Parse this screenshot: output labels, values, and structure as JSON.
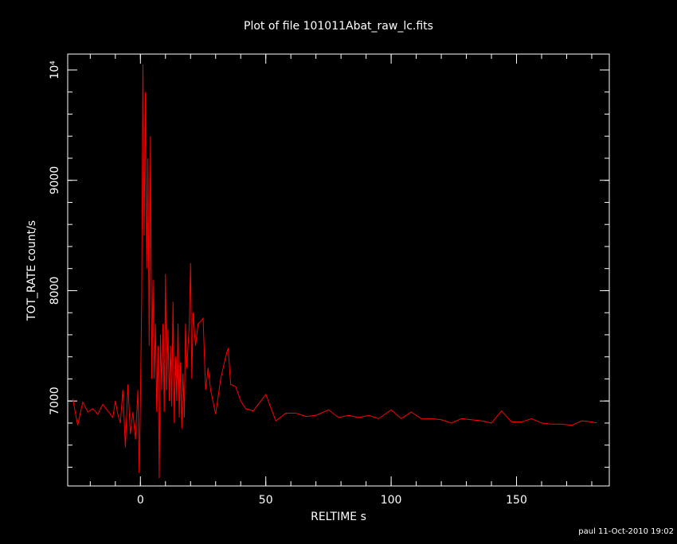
{
  "chart_data": {
    "type": "line",
    "title": "Plot of file 101011Abat_raw_lc.fits",
    "x_label": "RELTIME  s",
    "y_label": "TOT_RATE  count/s",
    "footer": "paul 11-Oct-2010 19:02",
    "xlim": [
      -29,
      187
    ],
    "ylim": [
      6230,
      10144
    ],
    "xticks": [
      0,
      50,
      100,
      150
    ],
    "yticks": [
      7000,
      8000,
      9000,
      {
        "value": 10000,
        "label": "10⁴"
      }
    ],
    "series": [
      {
        "color": "#ff0000",
        "x": [
          -27,
          -25,
          -23,
          -21,
          -19,
          -17,
          -15,
          -13,
          -11,
          -10,
          -9,
          -8,
          -7,
          -6,
          -5,
          -4,
          -3,
          -2,
          -1,
          -0.5,
          0,
          0.5,
          1,
          1.5,
          2,
          2.5,
          3,
          3.5,
          4,
          4.5,
          5,
          5.5,
          6,
          6.5,
          7,
          7.5,
          8,
          8.5,
          9,
          9.5,
          10,
          10.5,
          11,
          11.5,
          12,
          12.5,
          13,
          13.5,
          14,
          14.5,
          15,
          15.5,
          16,
          16.5,
          17,
          17.5,
          18,
          18.5,
          19,
          19.5,
          20,
          20.5,
          21,
          22,
          23,
          24,
          25,
          26,
          27,
          28,
          30,
          32,
          34,
          35,
          36,
          38,
          40,
          42,
          45,
          48,
          50,
          54,
          58,
          62,
          66,
          70,
          75,
          79,
          83,
          87,
          91,
          95,
          100,
          104,
          108,
          112,
          116,
          120,
          124,
          128,
          132,
          136,
          140,
          144,
          148,
          152,
          156,
          160,
          164,
          168,
          172,
          176,
          180,
          182
        ],
        "values": [
          7020,
          6780,
          6990,
          6900,
          6930,
          6880,
          6970,
          6910,
          6850,
          7000,
          6880,
          6800,
          7100,
          6580,
          7150,
          6700,
          6900,
          6650,
          7100,
          6350,
          7000,
          7900,
          10050,
          8500,
          9800,
          8200,
          9200,
          7500,
          9400,
          7200,
          8100,
          7200,
          7700,
          6900,
          7500,
          6300,
          7600,
          7100,
          7700,
          6900,
          8150,
          7100,
          7650,
          7000,
          7500,
          6950,
          7900,
          6800,
          7400,
          7000,
          7700,
          6850,
          7350,
          6750,
          7250,
          6850,
          7700,
          7300,
          7500,
          7700,
          8250,
          7200,
          7800,
          7500,
          7700,
          7720,
          7750,
          7100,
          7300,
          7100,
          6880,
          7200,
          7400,
          7480,
          7150,
          7130,
          7000,
          6930,
          6910,
          7000,
          7060,
          6820,
          6890,
          6890,
          6860,
          6870,
          6920,
          6850,
          6870,
          6850,
          6870,
          6840,
          6920,
          6840,
          6900,
          6840,
          6840,
          6830,
          6800,
          6840,
          6830,
          6820,
          6800,
          6910,
          6810,
          6810,
          6840,
          6800,
          6790,
          6790,
          6780,
          6820,
          6810,
          6800
        ]
      }
    ]
  }
}
